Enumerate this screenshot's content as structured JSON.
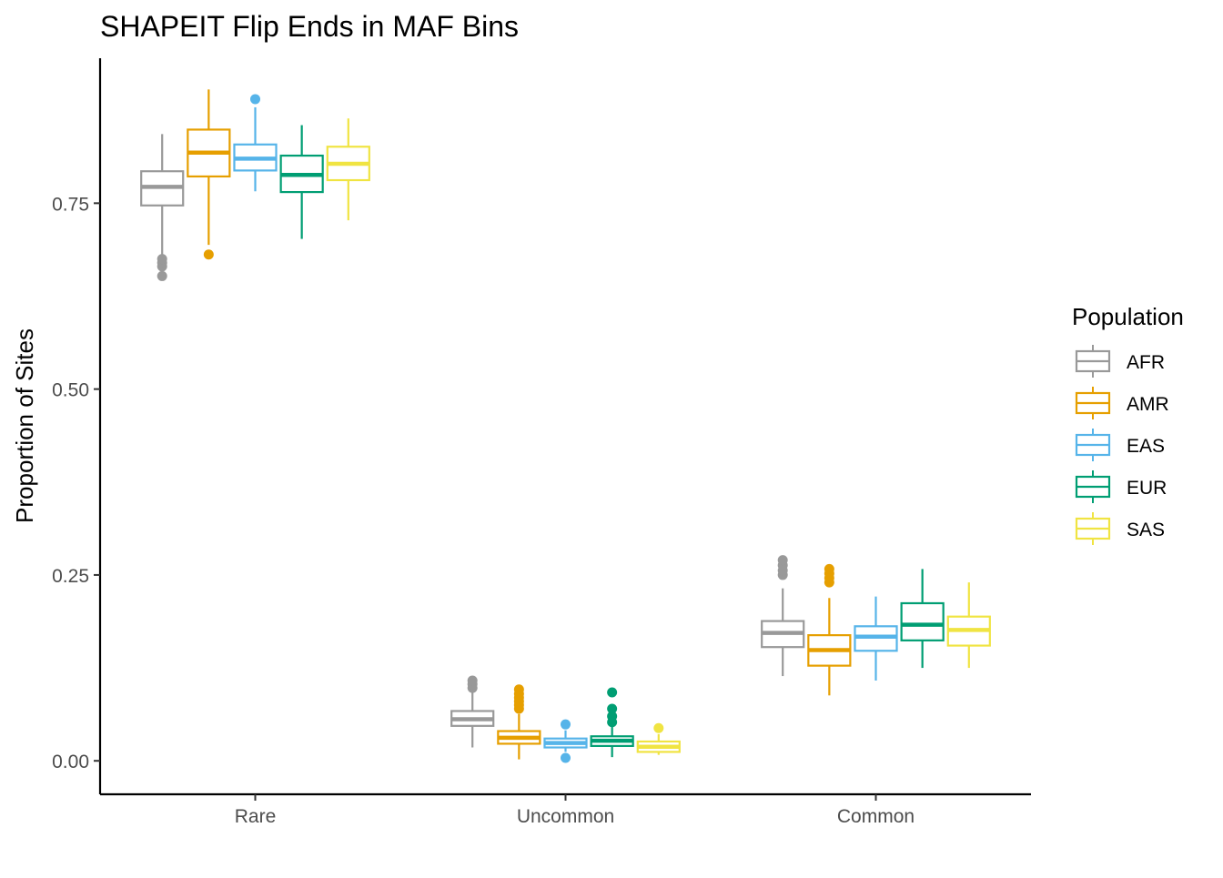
{
  "chart_data": {
    "type": "boxplot",
    "title": "SHAPEIT Flip Ends in MAF Bins",
    "xlabel": "",
    "ylabel": "Proportion of Sites",
    "ylim": [
      -0.045,
      0.945
    ],
    "yticks": [
      0.0,
      0.25,
      0.5,
      0.75
    ],
    "ytick_labels": [
      "0.00",
      "0.25",
      "0.50",
      "0.75"
    ],
    "categories": [
      "Rare",
      "Uncommon",
      "Common"
    ],
    "grid": false,
    "legend": {
      "title": "Population",
      "position": "right"
    },
    "series": [
      {
        "name": "AFR",
        "color": "#999999",
        "boxes": [
          {
            "whisker_low": 0.674,
            "q1": 0.747,
            "median": 0.772,
            "q3": 0.793,
            "whisker_high": 0.843,
            "outliers": [
              0.652,
              0.665,
              0.67,
              0.675
            ]
          },
          {
            "whisker_low": 0.018,
            "q1": 0.047,
            "median": 0.056,
            "q3": 0.067,
            "whisker_high": 0.095,
            "outliers": [
              0.098,
              0.103,
              0.108
            ]
          },
          {
            "whisker_low": 0.114,
            "q1": 0.153,
            "median": 0.172,
            "q3": 0.188,
            "whisker_high": 0.232,
            "outliers": [
              0.25,
              0.256,
              0.263,
              0.27
            ]
          }
        ]
      },
      {
        "name": "AMR",
        "color": "#E69F00",
        "boxes": [
          {
            "whisker_low": 0.694,
            "q1": 0.786,
            "median": 0.818,
            "q3": 0.849,
            "whisker_high": 0.903,
            "outliers": [
              0.681
            ]
          },
          {
            "whisker_low": 0.002,
            "q1": 0.023,
            "median": 0.031,
            "q3": 0.04,
            "whisker_high": 0.063,
            "outliers": [
              0.07,
              0.075,
              0.08,
              0.085,
              0.09,
              0.096
            ]
          },
          {
            "whisker_low": 0.088,
            "q1": 0.128,
            "median": 0.149,
            "q3": 0.169,
            "whisker_high": 0.219,
            "outliers": [
              0.24,
              0.246,
              0.252,
              0.258
            ]
          }
        ]
      },
      {
        "name": "EAS",
        "color": "#56B4E9",
        "boxes": [
          {
            "whisker_low": 0.766,
            "q1": 0.794,
            "median": 0.81,
            "q3": 0.829,
            "whisker_high": 0.879,
            "outliers": [
              0.89
            ]
          },
          {
            "whisker_low": 0.012,
            "q1": 0.018,
            "median": 0.024,
            "q3": 0.03,
            "whisker_high": 0.041,
            "outliers": [
              0.004,
              0.049
            ]
          },
          {
            "whisker_low": 0.108,
            "q1": 0.148,
            "median": 0.167,
            "q3": 0.181,
            "whisker_high": 0.221,
            "outliers": []
          }
        ]
      },
      {
        "name": "EUR",
        "color": "#009E73",
        "boxes": [
          {
            "whisker_low": 0.702,
            "q1": 0.765,
            "median": 0.788,
            "q3": 0.814,
            "whisker_high": 0.855,
            "outliers": []
          },
          {
            "whisker_low": 0.005,
            "q1": 0.02,
            "median": 0.027,
            "q3": 0.033,
            "whisker_high": 0.046,
            "outliers": [
              0.052,
              0.06,
              0.07,
              0.092
            ]
          },
          {
            "whisker_low": 0.125,
            "q1": 0.162,
            "median": 0.183,
            "q3": 0.212,
            "whisker_high": 0.258,
            "outliers": []
          }
        ]
      },
      {
        "name": "SAS",
        "color": "#F0E442",
        "boxes": [
          {
            "whisker_low": 0.727,
            "q1": 0.781,
            "median": 0.803,
            "q3": 0.826,
            "whisker_high": 0.864,
            "outliers": []
          },
          {
            "whisker_low": 0.008,
            "q1": 0.012,
            "median": 0.019,
            "q3": 0.026,
            "whisker_high": 0.036,
            "outliers": [
              0.044
            ]
          },
          {
            "whisker_low": 0.125,
            "q1": 0.155,
            "median": 0.176,
            "q3": 0.194,
            "whisker_high": 0.24,
            "outliers": []
          }
        ]
      }
    ]
  }
}
